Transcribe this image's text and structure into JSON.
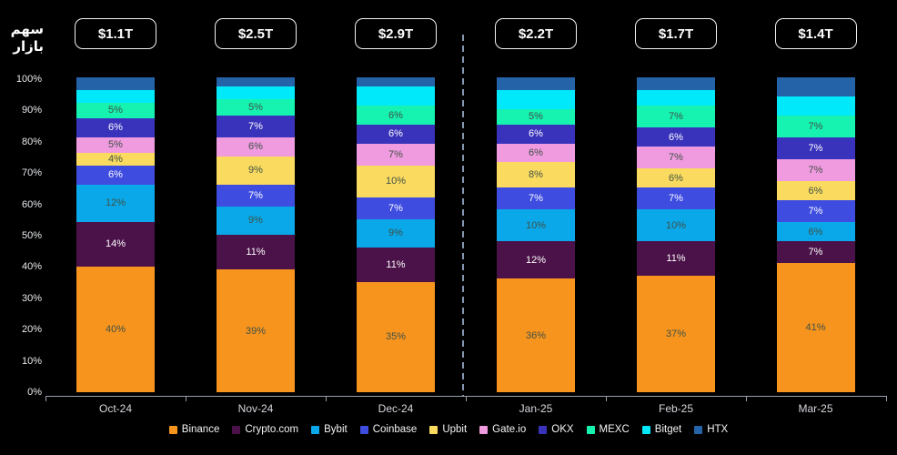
{
  "page": {
    "background": "#000000"
  },
  "y_axis_title": {
    "line1": "سهم",
    "line2": "بازار"
  },
  "chart_data": {
    "type": "bar",
    "subtype": "100%-stacked-vertical",
    "title": "",
    "categories": [
      "Oct-24",
      "Nov-24",
      "Dec-24",
      "Jan-25",
      "Feb-25",
      "Mar-25"
    ],
    "totals": [
      "$1.1T",
      "$2.5T",
      "$2.9T",
      "$2.2T",
      "$1.7T",
      "$1.4T"
    ],
    "series": [
      {
        "name": "Binance",
        "color": "#F7941D",
        "label_color": "#3F5147",
        "show_labels": true,
        "values": [
          40,
          39,
          35,
          36,
          37,
          41
        ]
      },
      {
        "name": "Crypto.com",
        "color": "#4A1248",
        "label_color": "#FFFFFF",
        "show_labels": true,
        "values": [
          14,
          11,
          11,
          12,
          11,
          7
        ]
      },
      {
        "name": "Bybit",
        "color": "#0AA8E8",
        "label_color": "#3F5147",
        "show_labels": true,
        "values": [
          12,
          9,
          9,
          10,
          10,
          6
        ]
      },
      {
        "name": "Coinbase",
        "color": "#3E4CE0",
        "label_color": "#FFFFFF",
        "show_labels": true,
        "values": [
          6,
          7,
          7,
          7,
          7,
          7
        ]
      },
      {
        "name": "Upbit",
        "color": "#FADB5F",
        "label_color": "#3F5147",
        "show_labels": true,
        "values": [
          4,
          9,
          10,
          8,
          6,
          6
        ]
      },
      {
        "name": "Gate.io",
        "color": "#F09ADF",
        "label_color": "#3F5147",
        "show_labels": true,
        "values": [
          5,
          6,
          7,
          6,
          7,
          7
        ]
      },
      {
        "name": "OKX",
        "color": "#3933BC",
        "label_color": "#FFFFFF",
        "show_labels": true,
        "values": [
          6,
          7,
          6,
          6,
          6,
          7
        ]
      },
      {
        "name": "MEXC",
        "color": "#16F2B0",
        "label_color": "#3F5147",
        "show_labels": true,
        "values": [
          5,
          5,
          6,
          5,
          7,
          7
        ]
      },
      {
        "name": "Bitget",
        "color": "#00E9FB",
        "label_color": "#3F5147",
        "show_labels": false,
        "values": [
          4,
          4,
          6,
          6,
          5,
          6
        ]
      },
      {
        "name": "HTX",
        "color": "#2563A8",
        "label_color": "#FFFFFF",
        "show_labels": false,
        "values": [
          4,
          3,
          3,
          4,
          4,
          6
        ]
      }
    ],
    "y_ticks": [
      "100%",
      "90%",
      "80%",
      "70%",
      "60%",
      "50%",
      "40%",
      "30%",
      "20%",
      "10%",
      "0%"
    ],
    "ylim": [
      0,
      100
    ],
    "value_suffix": "%",
    "grid": false,
    "legend_position": "bottom",
    "divider_between": [
      "Dec-24",
      "Jan-25"
    ]
  }
}
